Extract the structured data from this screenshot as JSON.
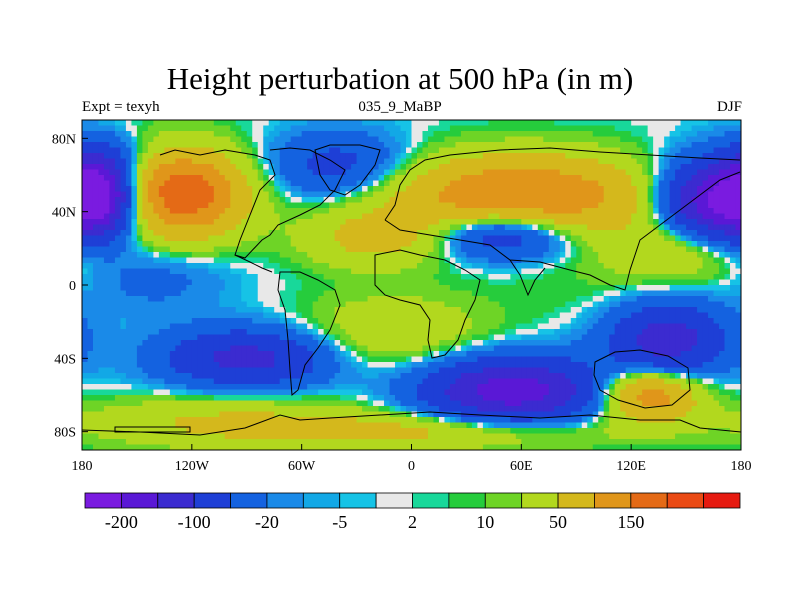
{
  "figure": {
    "title": "Height perturbation at 500 hPa (in m)",
    "left_string": "Expt = texyh",
    "center_string": "035_9_MaBP",
    "right_string": "DJF"
  },
  "chart_data": {
    "type": "heatmap",
    "title": "Height perturbation at 500 hPa (in m)",
    "x_tick_labels": [
      "180",
      "120W",
      "60W",
      "0",
      "60E",
      "120E",
      "180"
    ],
    "x_ticks_deg": [
      -180,
      -120,
      -60,
      0,
      60,
      120,
      180
    ],
    "y_tick_labels": [
      "80N",
      "40N",
      "0",
      "40S",
      "80S"
    ],
    "y_ticks_deg": [
      80,
      40,
      0,
      -40,
      -80
    ],
    "xlim": [
      -180,
      180
    ],
    "ylim": [
      -90,
      90
    ],
    "colorbar": {
      "colors": [
        "#7a1be0",
        "#5a18d6",
        "#3b2bd0",
        "#1e3fd6",
        "#1462e0",
        "#1a8ae8",
        "#12a8e6",
        "#16c3e6",
        "#e8e8e8",
        "#18d89a",
        "#26cc3c",
        "#6ed426",
        "#b2d81e",
        "#d4b81c",
        "#e0961a",
        "#e46a16",
        "#ea4a14",
        "#e61a10"
      ],
      "labels": [
        "-200",
        "-100",
        "-20",
        "-5",
        "2",
        "10",
        "50",
        "150"
      ]
    },
    "field_blobs": [
      {
        "lon": -170,
        "lat": 50,
        "value": -210,
        "rx": 20,
        "ry": 22
      },
      {
        "lon": 165,
        "lat": 45,
        "value": -200,
        "rx": 30,
        "ry": 22
      },
      {
        "lon": -125,
        "lat": 50,
        "value": 190,
        "rx": 34,
        "ry": 24
      },
      {
        "lon": 60,
        "lat": 48,
        "value": 160,
        "rx": 70,
        "ry": 22
      },
      {
        "lon": -40,
        "lat": 65,
        "value": -70,
        "rx": 38,
        "ry": 18
      },
      {
        "lon": -20,
        "lat": 25,
        "value": 60,
        "rx": 40,
        "ry": 16
      },
      {
        "lon": 50,
        "lat": 28,
        "value": -120,
        "rx": 38,
        "ry": 14
      },
      {
        "lon": 150,
        "lat": 20,
        "value": 55,
        "rx": 40,
        "ry": 18
      },
      {
        "lon": -140,
        "lat": 5,
        "value": -30,
        "rx": 40,
        "ry": 20
      },
      {
        "lon": -90,
        "lat": -40,
        "value": -120,
        "rx": 45,
        "ry": 16
      },
      {
        "lon": 55,
        "lat": -58,
        "value": -180,
        "rx": 48,
        "ry": 18
      },
      {
        "lon": 140,
        "lat": -30,
        "value": -130,
        "rx": 32,
        "ry": 20
      },
      {
        "lon": 130,
        "lat": -60,
        "value": 140,
        "rx": 26,
        "ry": 14
      },
      {
        "lon": -100,
        "lat": -75,
        "value": 55,
        "rx": 80,
        "ry": 14
      },
      {
        "lon": 20,
        "lat": -80,
        "value": 60,
        "rx": 90,
        "ry": 10
      },
      {
        "lon": -10,
        "lat": -25,
        "value": 45,
        "rx": 50,
        "ry": 20
      },
      {
        "lon": 95,
        "lat": 0,
        "value": 8,
        "rx": 55,
        "ry": 22
      },
      {
        "lon": -150,
        "lat": 72,
        "value": -15,
        "rx": 40,
        "ry": 10
      }
    ]
  }
}
